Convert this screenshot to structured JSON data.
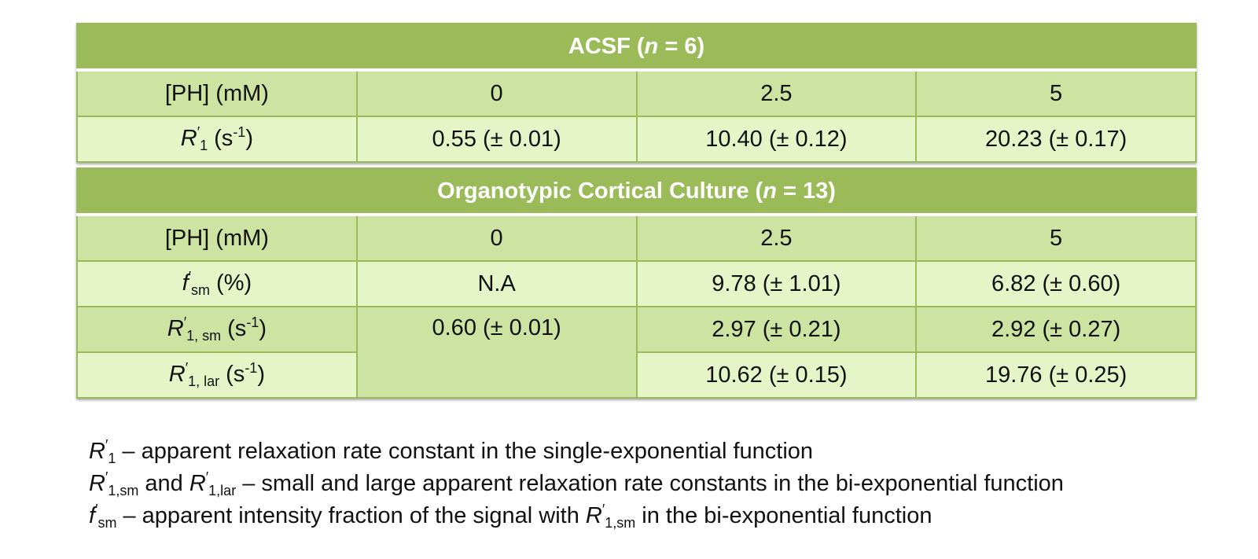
{
  "acsf": {
    "title_prefix": "ACSF (",
    "title_n": "n",
    "title_suffix": " = 6)",
    "row_conc": {
      "label": "[PH] (mM)",
      "values": [
        "0",
        "2.5",
        "5"
      ]
    },
    "row_r1": {
      "sym": "R",
      "prime": "′",
      "sub": "1",
      "unit_open": " (s",
      "unit_exp": "-1",
      "unit_close": ")",
      "values": [
        "0.55 (± 0.01)",
        "10.40 (± 0.12)",
        "20.23 (± 0.17)"
      ]
    }
  },
  "occ": {
    "title_prefix": "Organotypic Cortical Culture (",
    "title_n": "n",
    "title_suffix": " = 13)",
    "row_conc": {
      "label": "[PH] (mM)",
      "values": [
        "0",
        "2.5",
        "5"
      ]
    },
    "row_fsm": {
      "sym": "f",
      "prime": "′",
      "sub": "sm",
      "unit": " (%)",
      "values": [
        "N.A",
        "9.78 (± 1.01)",
        "6.82 (± 0.60)"
      ]
    },
    "row_r1sm": {
      "sym": "R",
      "prime": "′",
      "sub": "1, sm",
      "unit_open": " (s",
      "unit_exp": "-1",
      "unit_close": ")",
      "merged_value": "0.60 (± 0.01)",
      "values": [
        "2.97 (± 0.21)",
        "2.92 (± 0.27)"
      ]
    },
    "row_r1lar": {
      "sym": "R",
      "prime": "′",
      "sub": "1, lar",
      "unit_open": " (s",
      "unit_exp": "-1",
      "unit_close": ")",
      "values": [
        "10.62 (± 0.15)",
        "19.76 (± 0.25)"
      ]
    }
  },
  "notes": {
    "n1": {
      "sym": "R",
      "prime": "′",
      "sub": "1",
      "text": " – apparent relaxation rate constant in the single-exponential function"
    },
    "n2": {
      "sym_a": "R",
      "prime_a": "′",
      "sub_a": "1,sm",
      "and": " and ",
      "sym_b": "R",
      "prime_b": "′",
      "sub_b": "1,lar",
      "text": " – small and large apparent relaxation rate constants in the bi-exponential function"
    },
    "n3": {
      "sym": "f",
      "prime": "′",
      "sub": "sm",
      "text_a": " – apparent intensity fraction of the signal with ",
      "sym_r": "R",
      "prime_r": "′",
      "sub_r": "1,sm",
      "text_b": " in the bi-exponential function"
    }
  },
  "colors": {
    "header": "#9bbb59",
    "row_dark": "#cde3a2",
    "row_light": "#e6f5c8"
  }
}
